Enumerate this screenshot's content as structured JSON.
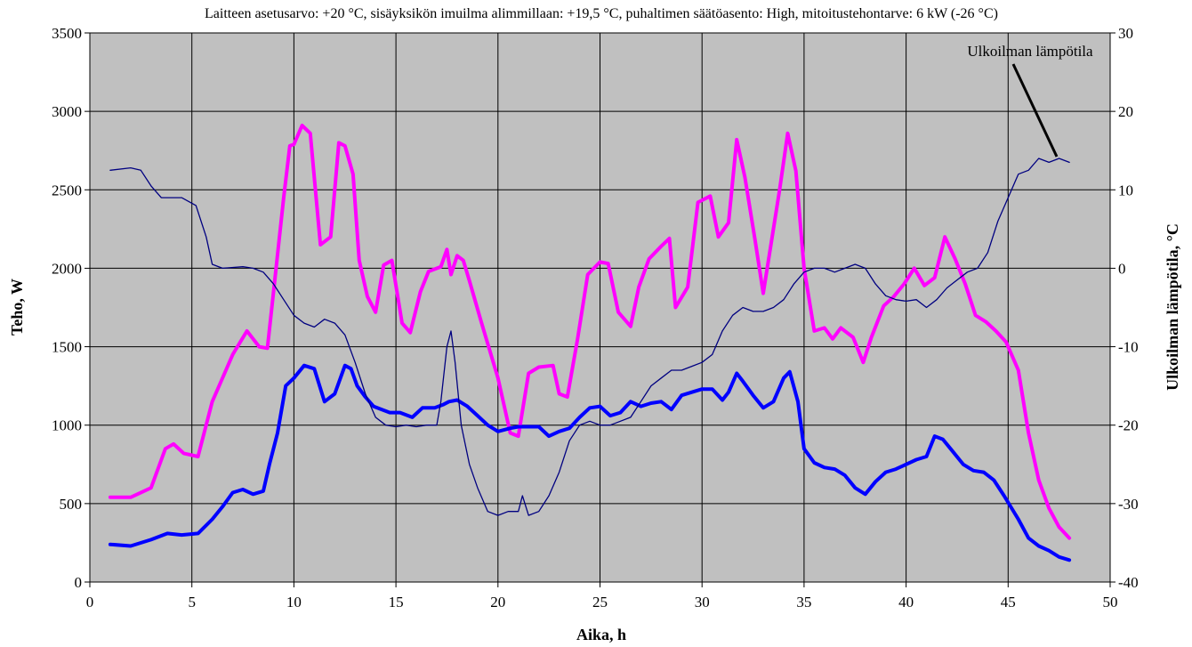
{
  "chart_data": {
    "type": "line",
    "title": "Laitteen asetusarvo: +20 °C, sisäyksikön imuilma alimmillaan: +19,5 °C, puhaltimen säätöasento: High, mitoitustehontarve: 6 kW (-26 °C)",
    "xlabel": "Aika, h",
    "ylabel": "Teho, W",
    "y2label": "Ulkoilman lämpötila, °C",
    "xlim": [
      0,
      50
    ],
    "ylim": [
      0,
      3500
    ],
    "y2lim": [
      -40,
      30
    ],
    "grid": true,
    "plot_background": "#C0C0C0",
    "x_ticks": [
      "0",
      "5",
      "10",
      "15",
      "20",
      "25",
      "30",
      "35",
      "40",
      "45",
      "50"
    ],
    "y_ticks": [
      "0",
      "500",
      "1000",
      "1500",
      "2000",
      "2500",
      "3000",
      "3500"
    ],
    "y2_ticks": [
      "-40",
      "-30",
      "-20",
      "-10",
      "0",
      "10",
      "20",
      "30"
    ],
    "annotation": "Ulkoilman lämpötila",
    "series": [
      {
        "color": "#FF00FF",
        "axis": "left",
        "x": [
          1.0,
          2.0,
          3.0,
          3.7,
          4.1,
          4.6,
          5.3,
          6.0,
          7.0,
          7.7,
          8.3,
          8.7,
          9.0,
          9.5,
          9.8,
          10.0,
          10.4,
          10.8,
          11.3,
          11.8,
          12.2,
          12.5,
          12.9,
          13.2,
          13.6,
          14.0,
          14.4,
          14.8,
          15.3,
          15.7,
          16.2,
          16.6,
          17.2,
          17.5,
          17.7,
          18.0,
          18.3,
          18.6,
          19.2,
          20.0,
          20.6,
          21.0,
          21.5,
          22.0,
          22.7,
          23.0,
          23.4,
          23.9,
          24.4,
          25.0,
          25.4,
          25.9,
          26.5,
          26.9,
          27.4,
          28.0,
          28.4,
          28.7,
          29.3,
          29.8,
          30.4,
          30.8,
          31.3,
          31.7,
          32.1,
          32.6,
          33.0,
          33.4,
          33.8,
          34.2,
          34.6,
          35.0,
          35.5,
          36.0,
          36.4,
          36.8,
          37.4,
          37.9,
          38.3,
          38.9,
          39.4,
          39.9,
          40.4,
          40.9,
          41.4,
          41.9,
          42.4,
          42.9,
          43.4,
          43.9,
          44.4,
          44.9,
          45.5,
          46.0,
          46.5,
          47.0,
          47.5,
          48.0
        ],
        "y": [
          540,
          540,
          600,
          850,
          880,
          820,
          800,
          1150,
          1450,
          1600,
          1500,
          1490,
          1850,
          2450,
          2780,
          2790,
          2910,
          2860,
          2150,
          2200,
          2800,
          2780,
          2600,
          2050,
          1820,
          1720,
          2020,
          2050,
          1650,
          1590,
          1850,
          1980,
          2010,
          2120,
          1960,
          2080,
          2050,
          1920,
          1650,
          1300,
          950,
          930,
          1330,
          1370,
          1380,
          1200,
          1180,
          1550,
          1960,
          2040,
          2030,
          1720,
          1630,
          1880,
          2060,
          2140,
          2190,
          1750,
          1880,
          2420,
          2460,
          2200,
          2290,
          2820,
          2580,
          2180,
          1840,
          2170,
          2500,
          2860,
          2620,
          2000,
          1600,
          1620,
          1550,
          1620,
          1560,
          1400,
          1560,
          1760,
          1820,
          1900,
          2000,
          1890,
          1940,
          2200,
          2060,
          1900,
          1700,
          1660,
          1600,
          1530,
          1350,
          950,
          650,
          470,
          350,
          280
        ]
      },
      {
        "color": "#0000FF",
        "axis": "left",
        "x": [
          1.0,
          2.0,
          3.0,
          3.8,
          4.5,
          5.3,
          6.0,
          6.5,
          7.0,
          7.5,
          8.0,
          8.5,
          8.8,
          9.2,
          9.6,
          10.0,
          10.5,
          11.0,
          11.5,
          12.0,
          12.5,
          12.8,
          13.1,
          13.5,
          13.9,
          14.3,
          14.7,
          15.2,
          15.8,
          16.3,
          16.9,
          17.3,
          17.6,
          18.0,
          18.5,
          19.0,
          19.5,
          20.0,
          20.6,
          21.0,
          21.5,
          22.0,
          22.5,
          23.0,
          23.5,
          24.0,
          24.5,
          25.0,
          25.5,
          26.0,
          26.5,
          27.0,
          27.5,
          28.0,
          28.5,
          29.0,
          29.5,
          30.0,
          30.5,
          31.0,
          31.3,
          31.7,
          32.0,
          32.5,
          33.0,
          33.5,
          34.0,
          34.3,
          34.7,
          35.0,
          35.5,
          36.0,
          36.5,
          37.0,
          37.5,
          38.0,
          38.5,
          39.0,
          39.5,
          40.0,
          40.5,
          41.0,
          41.4,
          41.8,
          42.3,
          42.8,
          43.3,
          43.8,
          44.3,
          44.8,
          45.5,
          46.0,
          46.5,
          47.0,
          47.5,
          48.0
        ],
        "y": [
          240,
          230,
          270,
          310,
          300,
          310,
          400,
          480,
          570,
          590,
          560,
          580,
          750,
          950,
          1250,
          1300,
          1380,
          1360,
          1150,
          1200,
          1380,
          1360,
          1250,
          1180,
          1120,
          1100,
          1080,
          1080,
          1050,
          1110,
          1110,
          1130,
          1150,
          1160,
          1120,
          1060,
          1000,
          960,
          980,
          990,
          990,
          990,
          930,
          960,
          980,
          1050,
          1110,
          1120,
          1060,
          1080,
          1150,
          1120,
          1140,
          1150,
          1100,
          1190,
          1210,
          1230,
          1230,
          1160,
          1210,
          1330,
          1280,
          1190,
          1110,
          1150,
          1300,
          1340,
          1150,
          850,
          760,
          730,
          720,
          680,
          600,
          560,
          640,
          700,
          720,
          750,
          780,
          800,
          930,
          910,
          830,
          750,
          710,
          700,
          650,
          550,
          400,
          280,
          230,
          200,
          160,
          140
        ]
      },
      {
        "color": "#000080",
        "axis": "right",
        "x": [
          1.0,
          2.0,
          2.5,
          3.0,
          3.5,
          4.5,
          5.2,
          5.7,
          6.0,
          6.5,
          7.5,
          8.0,
          8.5,
          9.0,
          9.5,
          10.0,
          10.5,
          11.0,
          11.5,
          12.0,
          12.5,
          13.0,
          13.5,
          14.0,
          14.5,
          15.0,
          15.5,
          16.0,
          16.5,
          17.0,
          17.2,
          17.5,
          17.7,
          17.9,
          18.2,
          18.6,
          19.0,
          19.5,
          20.0,
          20.5,
          21.0,
          21.2,
          21.5,
          22.0,
          22.5,
          23.0,
          23.5,
          24.0,
          24.5,
          25.0,
          25.5,
          26.0,
          26.5,
          27.0,
          27.5,
          28.0,
          28.5,
          29.0,
          29.5,
          30.0,
          30.5,
          31.0,
          31.5,
          32.0,
          32.5,
          33.0,
          33.5,
          34.0,
          34.5,
          35.0,
          35.5,
          36.0,
          36.5,
          37.0,
          37.5,
          38.0,
          38.5,
          39.0,
          39.5,
          40.0,
          40.5,
          41.0,
          41.5,
          42.0,
          42.5,
          43.0,
          43.5,
          44.0,
          44.5,
          45.0,
          45.5,
          46.0,
          46.5,
          47.0,
          47.5,
          48.0
        ],
        "y": [
          12.5,
          12.8,
          12.5,
          10.5,
          9.0,
          9.0,
          8.0,
          4.0,
          0.5,
          0.0,
          0.2,
          0.0,
          -0.5,
          -2.0,
          -4.0,
          -6.0,
          -7.0,
          -7.5,
          -6.5,
          -7.0,
          -8.5,
          -12.0,
          -16.0,
          -19.0,
          -20.0,
          -20.2,
          -20.0,
          -20.2,
          -20.0,
          -20.0,
          -17.0,
          -10.0,
          -8.0,
          -12.0,
          -20.0,
          -25.0,
          -28.0,
          -31.0,
          -31.5,
          -31.0,
          -31.0,
          -29.0,
          -31.5,
          -31.0,
          -29.0,
          -26.0,
          -22.0,
          -20.0,
          -19.5,
          -20.0,
          -20.0,
          -19.5,
          -19.0,
          -17.0,
          -15.0,
          -14.0,
          -13.0,
          -13.0,
          -12.5,
          -12.0,
          -11.0,
          -8.0,
          -6.0,
          -5.0,
          -5.5,
          -5.5,
          -5.0,
          -4.0,
          -2.0,
          -0.5,
          0.0,
          0.0,
          -0.5,
          0.0,
          0.5,
          0.0,
          -2.0,
          -3.5,
          -4.0,
          -4.2,
          -4.0,
          -5.0,
          -4.0,
          -2.5,
          -1.5,
          -0.5,
          0.0,
          2.0,
          6.0,
          9.0,
          12.0,
          12.5,
          14.0,
          13.5,
          14.0,
          13.5
        ]
      }
    ]
  }
}
